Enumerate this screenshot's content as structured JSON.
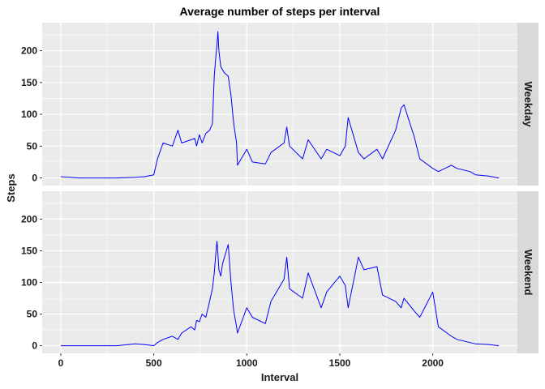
{
  "chart_data": {
    "type": "line",
    "title": "Average number of steps per interval",
    "xlabel": "Interval",
    "ylabel": "Steps",
    "xlim": [
      -100,
      2455
    ],
    "ylim": [
      -12,
      244
    ],
    "x_ticks": [
      0,
      500,
      1000,
      1500,
      2000
    ],
    "y_ticks": [
      0,
      50,
      100,
      150,
      200
    ],
    "line_color": "#0000FF",
    "panel_background": "#EBEBEB",
    "strip_background": "#D9D9D9",
    "grid": true,
    "facets": [
      {
        "label": "Weekday",
        "x": [
          0,
          100,
          200,
          300,
          400,
          450,
          500,
          520,
          550,
          600,
          630,
          650,
          700,
          720,
          730,
          745,
          760,
          780,
          800,
          815,
          825,
          835,
          840,
          845,
          850,
          860,
          870,
          880,
          900,
          915,
          930,
          945,
          950,
          1000,
          1030,
          1100,
          1130,
          1200,
          1215,
          1230,
          1300,
          1330,
          1400,
          1430,
          1500,
          1530,
          1545,
          1600,
          1630,
          1700,
          1730,
          1800,
          1830,
          1845,
          1900,
          1930,
          2000,
          2030,
          2100,
          2130,
          2200,
          2230,
          2300,
          2355
        ],
        "y": [
          2,
          0,
          0,
          0,
          1,
          2,
          5,
          30,
          55,
          50,
          75,
          55,
          60,
          62,
          50,
          68,
          55,
          70,
          75,
          85,
          160,
          195,
          210,
          230,
          200,
          175,
          170,
          165,
          160,
          130,
          85,
          55,
          20,
          45,
          25,
          22,
          40,
          55,
          80,
          50,
          30,
          60,
          30,
          45,
          35,
          50,
          95,
          40,
          30,
          45,
          30,
          75,
          110,
          115,
          65,
          30,
          15,
          10,
          20,
          15,
          10,
          5,
          3,
          0
        ]
      },
      {
        "label": "Weekend",
        "x": [
          0,
          100,
          200,
          300,
          400,
          450,
          500,
          520,
          550,
          600,
          630,
          650,
          700,
          720,
          730,
          745,
          760,
          780,
          800,
          815,
          825,
          835,
          840,
          845,
          850,
          860,
          870,
          880,
          900,
          915,
          930,
          945,
          950,
          1000,
          1030,
          1100,
          1130,
          1200,
          1215,
          1230,
          1300,
          1330,
          1400,
          1430,
          1500,
          1530,
          1545,
          1600,
          1630,
          1700,
          1730,
          1800,
          1830,
          1845,
          1900,
          1930,
          2000,
          2030,
          2100,
          2130,
          2200,
          2230,
          2300,
          2355
        ],
        "y": [
          0,
          0,
          0,
          0,
          3,
          2,
          0,
          5,
          10,
          15,
          10,
          20,
          30,
          25,
          40,
          38,
          50,
          45,
          70,
          90,
          115,
          150,
          165,
          145,
          120,
          110,
          130,
          140,
          160,
          100,
          55,
          30,
          20,
          60,
          45,
          35,
          70,
          105,
          140,
          90,
          75,
          115,
          60,
          85,
          110,
          95,
          60,
          140,
          120,
          125,
          80,
          70,
          60,
          75,
          55,
          45,
          85,
          30,
          15,
          10,
          5,
          3,
          2,
          0
        ]
      }
    ]
  }
}
